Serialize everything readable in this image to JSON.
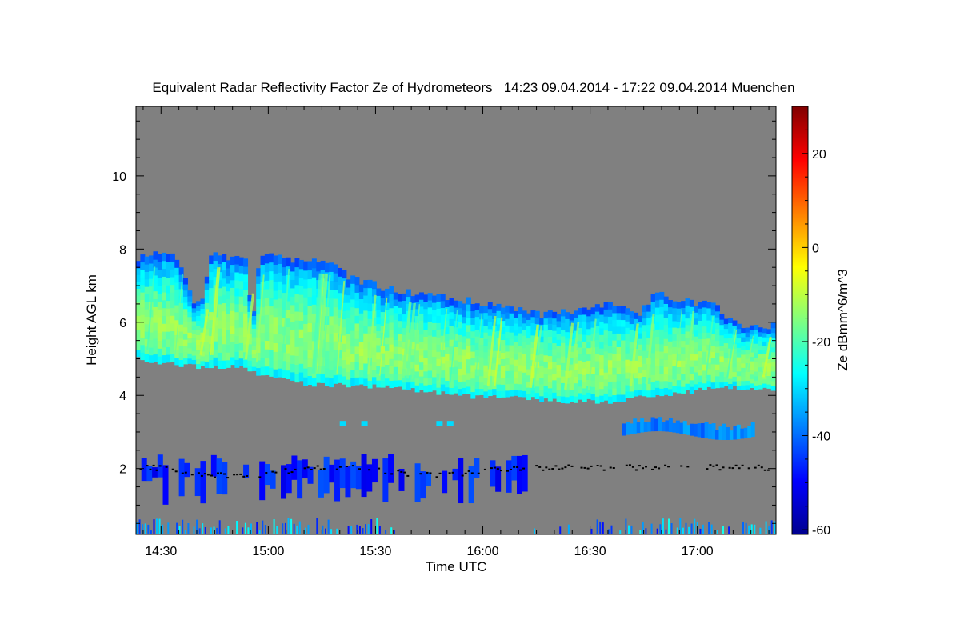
{
  "chart_data": {
    "type": "heatmap",
    "title": "Equivalent Radar Reflectivity Factor Ze of Hydrometeors   14:23 09.04.2014 - 17:22 09.04.2014 Muenchen",
    "xlabel": "Time UTC",
    "ylabel": "Height AGL km",
    "colorbar_label": "Ze dBmm^6/m^3",
    "x_range_minutes": [
      863,
      1042
    ],
    "y_range_km": [
      0.2,
      11.9
    ],
    "x_ticks": [
      {
        "value": 870,
        "label": "14:30"
      },
      {
        "value": 900,
        "label": "15:00"
      },
      {
        "value": 930,
        "label": "15:30"
      },
      {
        "value": 960,
        "label": "16:00"
      },
      {
        "value": 990,
        "label": "16:30"
      },
      {
        "value": 1020,
        "label": "17:00"
      }
    ],
    "y_ticks": [
      {
        "value": 2,
        "label": "2"
      },
      {
        "value": 4,
        "label": "4"
      },
      {
        "value": 6,
        "label": "6"
      },
      {
        "value": 8,
        "label": "8"
      },
      {
        "value": 10,
        "label": "10"
      }
    ],
    "colorbar_range": [
      -61,
      30
    ],
    "colorbar_ticks": [
      {
        "value": 20,
        "label": "20"
      },
      {
        "value": 0,
        "label": "0"
      },
      {
        "value": -20,
        "label": "-20"
      },
      {
        "value": -40,
        "label": "-40"
      },
      {
        "value": -60,
        "label": "-60"
      }
    ],
    "colormap": "jet",
    "background_color": "#808080",
    "cloud_layers": [
      {
        "name": "upper-cloud",
        "time_span": [
          863,
          1042
        ],
        "base_km": [
          5.0,
          4.2
        ],
        "top_km": [
          7.8,
          5.9
        ],
        "core_dbz": -12
      },
      {
        "name": "middle-cloud",
        "time_span": [
          1000,
          1035
        ],
        "base_km": 2.8,
        "top_km": 3.3,
        "core_dbz": -35
      },
      {
        "name": "low-cloud",
        "time_span": [
          863,
          970
        ],
        "base_km": 1.0,
        "top_km": 2.4,
        "core_dbz": -45
      },
      {
        "name": "near-surface-clutter",
        "time_span": [
          863,
          1042
        ],
        "base_km": 0.2,
        "top_km": 0.6,
        "core_dbz": -40
      }
    ]
  }
}
